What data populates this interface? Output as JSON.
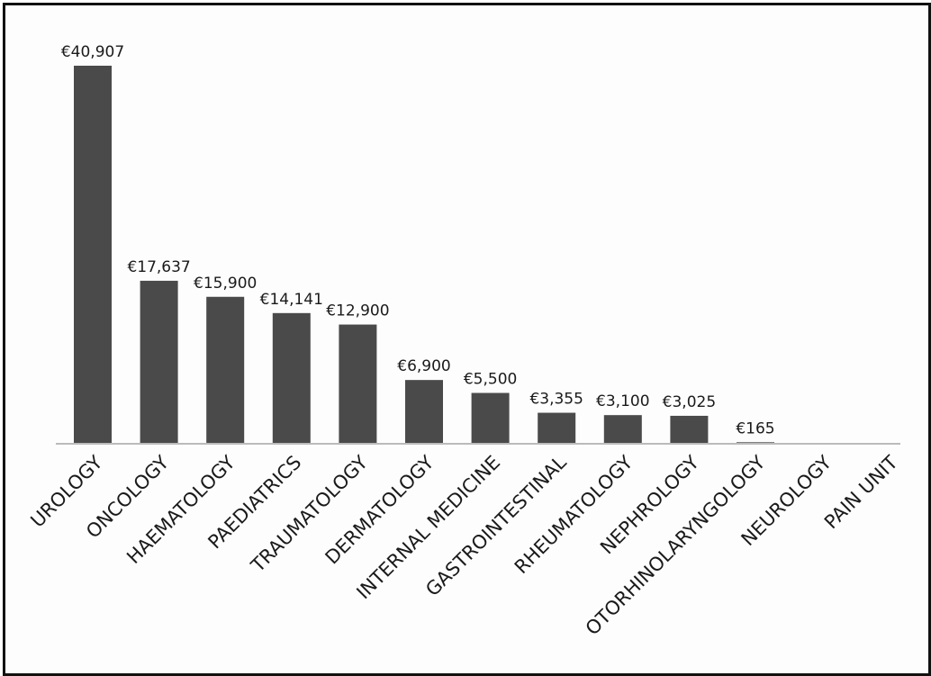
{
  "chart_data": {
    "type": "bar",
    "categories": [
      "UROLOGY",
      "ONCOLOGY",
      "HAEMATOLOGY",
      "PAEDIATRICS",
      "TRAUMATOLOGY",
      "DERMATOLOGY",
      "INTERNAL MEDICINE",
      "GASTROINTESTINAL",
      "RHEUMATOLOGY",
      "NEPHROLOGY",
      "OTORHINOLARYNGOLOGY",
      "NEUROLOGY",
      "PAIN UNIT"
    ],
    "values": [
      40907,
      17637,
      15900,
      14141,
      12900,
      6900,
      5500,
      3355,
      3100,
      3025,
      165,
      0,
      0
    ],
    "value_labels": [
      "€40,907",
      "€17,637",
      "€15,900",
      "€14,141",
      "€12,900",
      "€6,900",
      "€5,500",
      "€3,355",
      "€3,100",
      "€3,025",
      "€165",
      "",
      ""
    ],
    "ylim": [
      0,
      40907
    ],
    "grid": false,
    "legend": "none",
    "colors": {
      "bar": "#4a4a4a",
      "axis": "#bbbbbb",
      "text": "#1a1a1a",
      "frame": "#111111"
    }
  }
}
